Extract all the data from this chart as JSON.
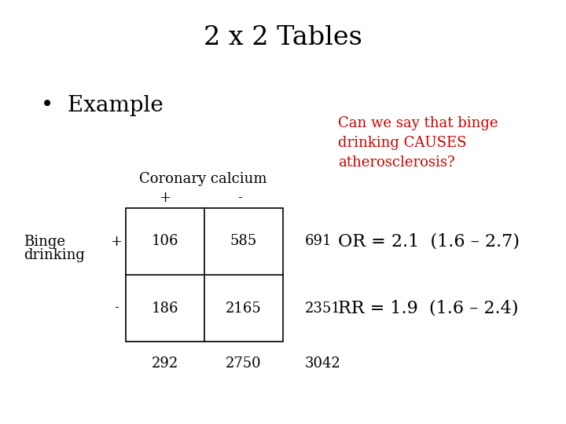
{
  "title": "2 x 2 Tables",
  "bullet": "•  Example",
  "red_text": "Can we say that binge\ndrinking CAUSES\natherosclerosis?",
  "col_header": "Coronary calcium",
  "col_plus": "+",
  "col_minus": "-",
  "row_label_line1": "Binge",
  "row_label_line2": "drinking",
  "row_plus": "+",
  "row_minus": "-",
  "cell_a": "106",
  "cell_b": "585",
  "cell_c": "186",
  "cell_d": "2165",
  "row1_total": "691",
  "row2_total": "2351",
  "col1_total": "292",
  "col2_total": "2750",
  "grand_total": "3042",
  "or_text": "OR = 2.1  (1.6 – 2.7)",
  "rr_text": "RR = 1.9  (1.6 – 2.4)",
  "bg_color": "#ffffff",
  "title_color": "#000000",
  "red_color": "#cc0000",
  "black_color": "#000000",
  "title_fontsize": 24,
  "bullet_fontsize": 20,
  "body_fontsize": 13,
  "stat_fontsize": 16
}
